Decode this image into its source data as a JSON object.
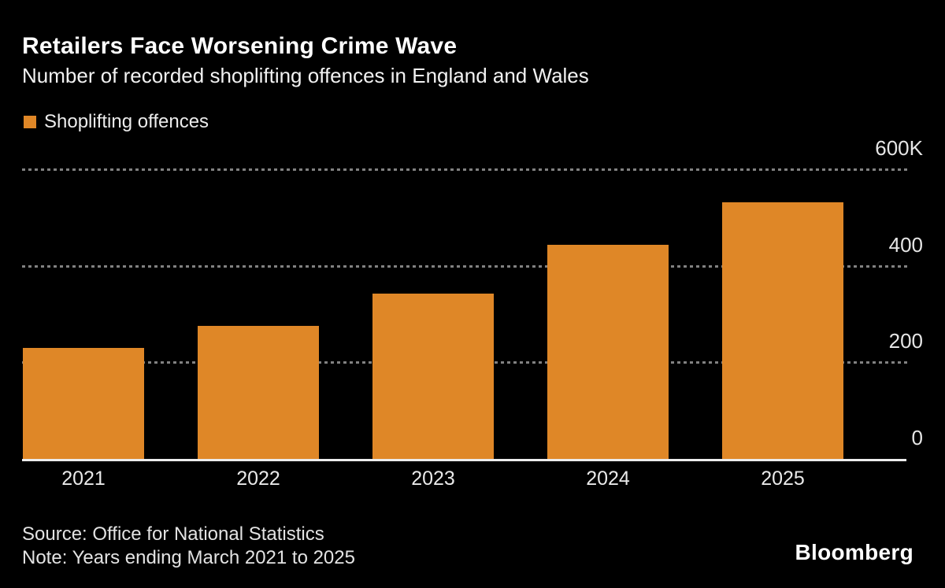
{
  "header": {
    "title": "Retailers Face Worsening Crime Wave",
    "subtitle": "Number of recorded shoplifting offences in England and Wales"
  },
  "legend": {
    "label": "Shoplifting offences",
    "swatch_color": "#DF8727"
  },
  "chart_data": {
    "type": "bar",
    "title": "Retailers Face Worsening Crime Wave",
    "subtitle": "Number of recorded shoplifting offences in England and Wales",
    "series_name": "Shoplifting offences",
    "categories": [
      "2021",
      "2022",
      "2023",
      "2024",
      "2025"
    ],
    "values": [
      230000,
      275000,
      343000,
      444000,
      531000
    ],
    "values_unit": "recorded offences",
    "xlabel": "",
    "ylabel": "",
    "ylim": [
      0,
      600000
    ],
    "yticks": [
      {
        "value": 0,
        "label": "0"
      },
      {
        "value": 200000,
        "label": "200"
      },
      {
        "value": 400000,
        "label": "400"
      },
      {
        "value": 600000,
        "label": "600K"
      }
    ],
    "grid": "horizontal-dashed",
    "legend_position": "top-left",
    "bar_color": "#DF8727"
  },
  "colors": {
    "background": "#000000",
    "bar": "#DF8727",
    "title_text": "#FFFFFF",
    "subtitle_text": "#F2F2F2",
    "axis_text": "#E6E6E6",
    "gridline": "#818181",
    "axis_line": "#ECECEC",
    "footer_text": "#E3E3E3"
  },
  "footer": {
    "source": "Source: Office for National Statistics",
    "note": "Note: Years ending March 2021 to 2025",
    "brand": "Bloomberg"
  }
}
